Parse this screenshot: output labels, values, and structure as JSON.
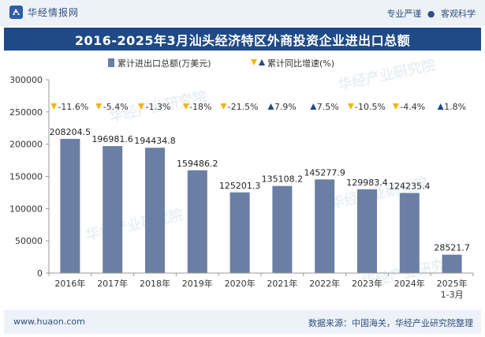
{
  "header": {
    "brand_name": "华经情报网",
    "brand_logo_icon": "huajing-logo-icon",
    "tag_1": "专业严谨",
    "tag_separator": "●",
    "tag_2": "客观科学"
  },
  "footer": {
    "site": "www.huaon.com",
    "source": "数据来源：中国海关，华经产业研究院整理"
  },
  "watermark_text": "华经产业研究院",
  "colors": {
    "bar": "#6a7fa3",
    "title_bg": "#1f4a87",
    "down_marker": "#f2b705",
    "up_marker": "#1f4a87"
  },
  "chart_data": {
    "type": "bar",
    "title": "2016-2025年3月汕头经济特区外商投资企业进出口总额",
    "categories": [
      "2016年",
      "2017年",
      "2018年",
      "2019年",
      "2020年",
      "2021年",
      "2022年",
      "2023年",
      "2024年",
      "2025年\n1-3月"
    ],
    "series": [
      {
        "name": "累计进出口总额(万美元)",
        "values": [
          208204.5,
          196981.6,
          194434.8,
          159486.2,
          125201.3,
          135108.2,
          145277.9,
          129983.4,
          124235.4,
          28521.7
        ],
        "labels": [
          "208204.5",
          "196981.6",
          "194434.8",
          "159486.2",
          "125201.3",
          "135108.2",
          "145277.9",
          "129983.4",
          "124235.4",
          "28521.7"
        ]
      },
      {
        "name": "累计同比增速(%)",
        "values": [
          -11.6,
          -5.4,
          -1.3,
          -18,
          -21.5,
          7.9,
          7.5,
          -10.5,
          -4.4,
          1.8
        ],
        "labels": [
          "-11.6%",
          "-5.4%",
          "-1.3%",
          "-18%",
          "-21.5%",
          "7.9%",
          "7.5%",
          "-10.5%",
          "-4.4%",
          "1.8%"
        ]
      }
    ],
    "yticks": [
      "0",
      "50000",
      "100000",
      "150000",
      "200000",
      "250000",
      "300000"
    ],
    "ylim": [
      0,
      300000
    ],
    "legend_position": "top-center",
    "grid": false
  }
}
